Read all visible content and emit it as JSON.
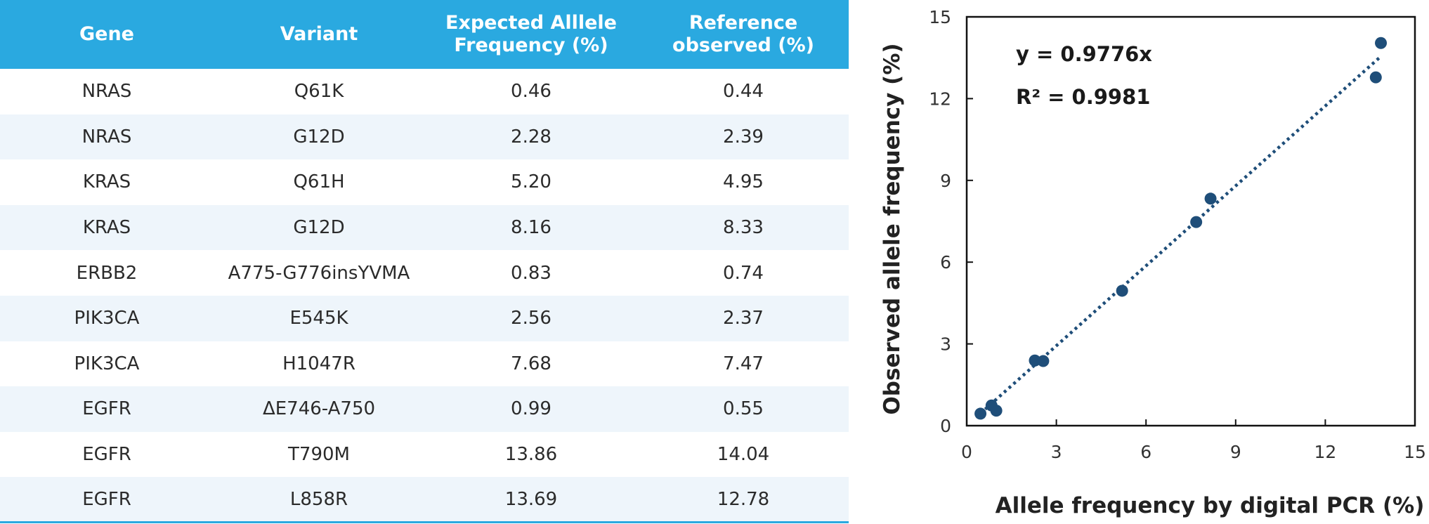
{
  "table": {
    "headers": {
      "gene": "Gene",
      "variant": "Variant",
      "expected_line1": "Expected Alllele",
      "expected_line2": "Frequency (%)",
      "observed_line1": "Reference",
      "observed_line2": "observed (%)"
    },
    "rows": [
      {
        "gene": "NRAS",
        "variant": "Q61K",
        "expected": "0.46",
        "observed": "0.44"
      },
      {
        "gene": "NRAS",
        "variant": "G12D",
        "expected": "2.28",
        "observed": "2.39"
      },
      {
        "gene": "KRAS",
        "variant": "Q61H",
        "expected": "5.20",
        "observed": "4.95"
      },
      {
        "gene": "KRAS",
        "variant": "G12D",
        "expected": "8.16",
        "observed": "8.33"
      },
      {
        "gene": "ERBB2",
        "variant": "A775-G776insYVMA",
        "expected": "0.83",
        "observed": "0.74"
      },
      {
        "gene": "PIK3CA",
        "variant": "E545K",
        "expected": "2.56",
        "observed": "2.37"
      },
      {
        "gene": "PIK3CA",
        "variant": "H1047R",
        "expected": "7.68",
        "observed": "7.47"
      },
      {
        "gene": "EGFR",
        "variant": "ΔE746-A750",
        "expected": "0.99",
        "observed": "0.55"
      },
      {
        "gene": "EGFR",
        "variant": "T790M",
        "expected": "13.86",
        "observed": "14.04"
      },
      {
        "gene": "EGFR",
        "variant": "L858R",
        "expected": "13.69",
        "observed": "12.78"
      }
    ],
    "colors": {
      "header_bg": "#2aa9e0",
      "stripe_bg": "#eef5fb"
    }
  },
  "chart_data": {
    "type": "scatter",
    "xlabel": "Allele frequency by digital PCR (%)",
    "ylabel": "Observed allele frequency (%)",
    "xlim": [
      0,
      15
    ],
    "ylim": [
      0,
      15
    ],
    "xticks": [
      0,
      3,
      6,
      9,
      12,
      15
    ],
    "yticks": [
      0,
      3,
      6,
      9,
      12,
      15
    ],
    "grid": false,
    "legend": "none",
    "series": [
      {
        "x": [
          0.46,
          2.28,
          5.2,
          8.16,
          0.83,
          2.56,
          7.68,
          0.99,
          13.86,
          13.69
        ],
        "y": [
          0.44,
          2.39,
          4.95,
          8.33,
          0.74,
          2.37,
          7.47,
          0.55,
          14.04,
          12.78
        ]
      }
    ],
    "trendline": {
      "slope": 0.9776,
      "x_range": [
        0.46,
        13.86
      ],
      "style": "dotted"
    },
    "annotations": {
      "equation": "y = 0.9776x",
      "r_squared": "R² = 0.9981"
    },
    "colors": {
      "marker": "#1f4e79",
      "trendline": "#1f4e79",
      "axis": "#111111"
    }
  }
}
